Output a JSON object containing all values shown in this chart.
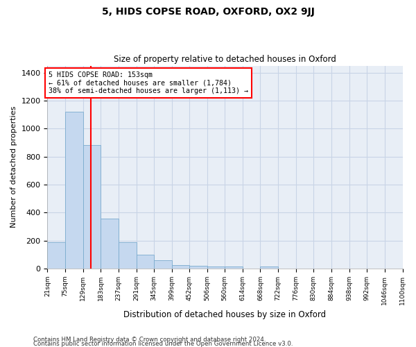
{
  "title": "5, HIDS COPSE ROAD, OXFORD, OX2 9JJ",
  "subtitle": "Size of property relative to detached houses in Oxford",
  "xlabel": "Distribution of detached houses by size in Oxford",
  "ylabel": "Number of detached properties",
  "footer1": "Contains HM Land Registry data © Crown copyright and database right 2024.",
  "footer2": "Contains public sector information licensed under the Open Government Licence v3.0.",
  "bin_edges": [
    21,
    75,
    129,
    183,
    237,
    291,
    345,
    399,
    452,
    506,
    560,
    614,
    668,
    722,
    776,
    830,
    884,
    938,
    992,
    1046,
    1100
  ],
  "bar_heights": [
    190,
    1120,
    880,
    355,
    190,
    100,
    60,
    25,
    20,
    15,
    15,
    0,
    15,
    0,
    0,
    0,
    0,
    0,
    0,
    0
  ],
  "bar_color": "#c5d8ef",
  "bar_edge_color": "#7aabce",
  "red_line_x": 153,
  "annotation_text": "5 HIDS COPSE ROAD: 153sqm\n← 61% of detached houses are smaller (1,784)\n38% of semi-detached houses are larger (1,113) →",
  "ylim": [
    0,
    1450
  ],
  "yticks": [
    0,
    200,
    400,
    600,
    800,
    1000,
    1200,
    1400
  ],
  "grid_color": "#c8d4e6",
  "background_color": "#e8eef6"
}
